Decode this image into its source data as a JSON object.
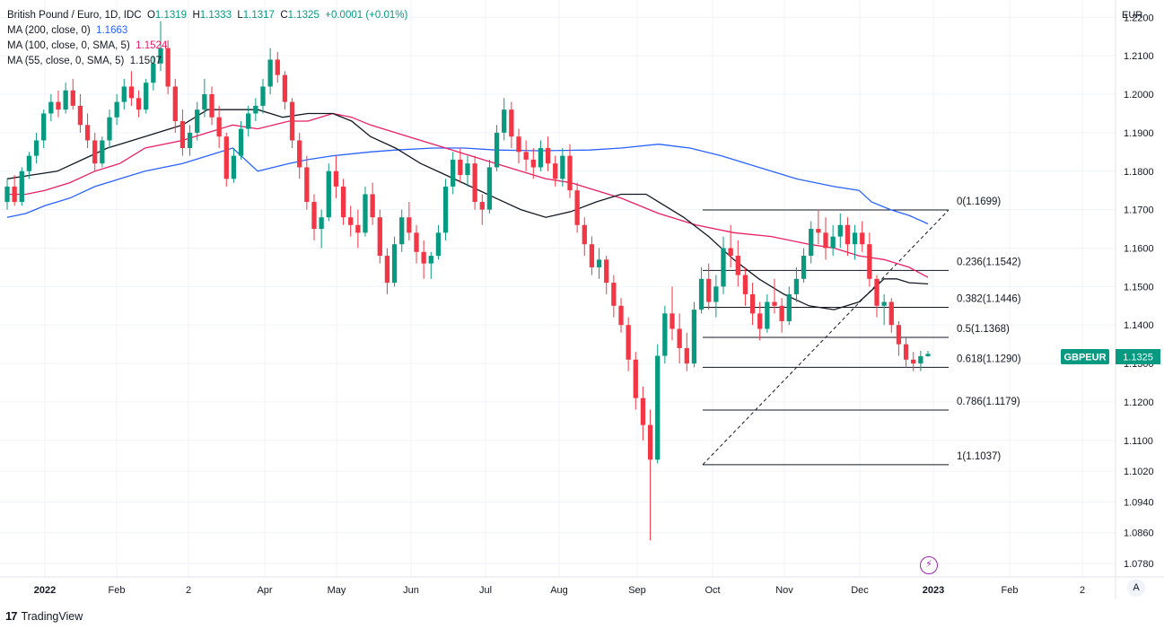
{
  "legend": {
    "symbol": "British Pound / Euro, 1D, IDC",
    "open_label": "O",
    "open": "1.1319",
    "high_label": "H",
    "high": "1.1333",
    "low_label": "L",
    "low": "1.1317",
    "close_label": "C",
    "close": "1.1325",
    "change": "+0.0001 (+0.01%)",
    "ma200_label": "MA (200, close, 0)",
    "ma200_value": "1.1663",
    "ma100_label": "MA (100, close, 0, SMA, 5)",
    "ma100_value": "1.1524",
    "ma55_label": "MA (55, close, 0, SMA, 5)",
    "ma55_value": "1.1507"
  },
  "currency": "EUR",
  "auto_button": "A",
  "brand": {
    "logo": "17",
    "name": "TradingView"
  },
  "colors": {
    "up": "#089981",
    "down": "#f23645",
    "ma200": "#2962ff",
    "ma100": "#e91e63",
    "ma55": "#131722",
    "badge": "#089981"
  },
  "chart_data": {
    "type": "candlestick",
    "title": "British Pound / Euro, 1D, IDC",
    "y_axis": {
      "ticks": [
        1.078,
        1.086,
        1.094,
        1.102,
        1.11,
        1.12,
        1.13,
        1.14,
        1.15,
        1.16,
        1.17,
        1.18,
        1.19,
        1.2,
        1.21,
        1.22
      ],
      "tick_labels": [
        "1.0780",
        "1.0860",
        "1.0940",
        "1.1020",
        "1.1100",
        "1.1200",
        "1.1300",
        "1.1400",
        "1.1500",
        "1.1600",
        "1.1700",
        "1.1800",
        "1.1900",
        "1.2000",
        "1.2100",
        "1.2200"
      ],
      "range": [
        1.0745,
        1.2245
      ]
    },
    "x_axis": {
      "labels": [
        "2022",
        "Feb",
        "2",
        "Apr",
        "May",
        "Jun",
        "Jul",
        "Aug",
        "Sep",
        "Oct",
        "Nov",
        "Dec",
        "2023",
        "Feb",
        "2"
      ]
    },
    "last_price": {
      "symbol": "GBPEUR",
      "value": "1.1325"
    },
    "fibonacci": {
      "levels": [
        {
          "ratio": "0",
          "price": 1.1699,
          "label": "0(1.1699)"
        },
        {
          "ratio": "0.236",
          "price": 1.1542,
          "label": "0.236(1.1542)"
        },
        {
          "ratio": "0.382",
          "price": 1.1446,
          "label": "0.382(1.1446)"
        },
        {
          "ratio": "0.5",
          "price": 1.1368,
          "label": "0.5(1.1368)"
        },
        {
          "ratio": "0.618",
          "price": 1.129,
          "label": "0.618(1.1290)"
        },
        {
          "ratio": "0.786",
          "price": 1.1179,
          "label": "0.786(1.1179)"
        },
        {
          "ratio": "1",
          "price": 1.1037,
          "label": "1(1.1037)"
        }
      ]
    },
    "series": [
      {
        "name": "MA (200, close, 0)",
        "color": "#2962ff",
        "points": [
          [
            0,
            1.168
          ],
          [
            3,
            1.169
          ],
          [
            6,
            1.171
          ],
          [
            10,
            1.173
          ],
          [
            14,
            1.176
          ],
          [
            18,
            1.178
          ],
          [
            22,
            1.18
          ],
          [
            28,
            1.182
          ],
          [
            32,
            1.184
          ],
          [
            36,
            1.186
          ],
          [
            40,
            1.18
          ],
          [
            45,
            1.182
          ],
          [
            48,
            1.183
          ],
          [
            52,
            1.184
          ],
          [
            58,
            1.185
          ],
          [
            62,
            1.1855
          ],
          [
            68,
            1.186
          ],
          [
            73,
            1.186
          ],
          [
            78,
            1.1855
          ],
          [
            85,
            1.1853
          ],
          [
            93,
            1.1855
          ],
          [
            98,
            1.186
          ],
          [
            104,
            1.187
          ],
          [
            109,
            1.186
          ],
          [
            114,
            1.184
          ],
          [
            120,
            1.181
          ],
          [
            126,
            1.178
          ],
          [
            132,
            1.176
          ],
          [
            136,
            1.175
          ],
          [
            138,
            1.172
          ],
          [
            141,
            1.17
          ],
          [
            144,
            1.1685
          ],
          [
            147,
            1.1663
          ]
        ]
      },
      {
        "name": "MA (100, close, 0, SMA, 5)",
        "color": "#e91e63",
        "points": [
          [
            0,
            1.174
          ],
          [
            3,
            1.174
          ],
          [
            6,
            1.175
          ],
          [
            10,
            1.177
          ],
          [
            14,
            1.18
          ],
          [
            18,
            1.182
          ],
          [
            22,
            1.186
          ],
          [
            28,
            1.188
          ],
          [
            32,
            1.19
          ],
          [
            36,
            1.192
          ],
          [
            40,
            1.191
          ],
          [
            45,
            1.193
          ],
          [
            48,
            1.193
          ],
          [
            52,
            1.195
          ],
          [
            55,
            1.194
          ],
          [
            58,
            1.192
          ],
          [
            62,
            1.19
          ],
          [
            66,
            1.188
          ],
          [
            70,
            1.186
          ],
          [
            74,
            1.184
          ],
          [
            78,
            1.182
          ],
          [
            82,
            1.18
          ],
          [
            86,
            1.178
          ],
          [
            90,
            1.177
          ],
          [
            94,
            1.175
          ],
          [
            98,
            1.173
          ],
          [
            104,
            1.169
          ],
          [
            110,
            1.166
          ],
          [
            116,
            1.164
          ],
          [
            122,
            1.163
          ],
          [
            128,
            1.161
          ],
          [
            132,
            1.16
          ],
          [
            136,
            1.158
          ],
          [
            140,
            1.157
          ],
          [
            144,
            1.155
          ],
          [
            147,
            1.1524
          ]
        ]
      },
      {
        "name": "MA (55, close, 0, SMA, 5)",
        "color": "#131722",
        "points": [
          [
            0,
            1.178
          ],
          [
            4,
            1.179
          ],
          [
            8,
            1.18
          ],
          [
            12,
            1.183
          ],
          [
            16,
            1.186
          ],
          [
            20,
            1.188
          ],
          [
            24,
            1.19
          ],
          [
            28,
            1.192
          ],
          [
            32,
            1.196
          ],
          [
            36,
            1.196
          ],
          [
            40,
            1.196
          ],
          [
            44,
            1.194
          ],
          [
            48,
            1.195
          ],
          [
            52,
            1.195
          ],
          [
            55,
            1.193
          ],
          [
            58,
            1.189
          ],
          [
            62,
            1.186
          ],
          [
            66,
            1.182
          ],
          [
            70,
            1.179
          ],
          [
            74,
            1.176
          ],
          [
            78,
            1.173
          ],
          [
            82,
            1.17
          ],
          [
            86,
            1.168
          ],
          [
            90,
            1.1695
          ],
          [
            94,
            1.172
          ],
          [
            98,
            1.174
          ],
          [
            102,
            1.174
          ],
          [
            104,
            1.172
          ],
          [
            108,
            1.168
          ],
          [
            112,
            1.163
          ],
          [
            116,
            1.157
          ],
          [
            120,
            1.152
          ],
          [
            124,
            1.148
          ],
          [
            128,
            1.145
          ],
          [
            132,
            1.144
          ],
          [
            136,
            1.146
          ],
          [
            138,
            1.149
          ],
          [
            140,
            1.152
          ],
          [
            142,
            1.152
          ],
          [
            144,
            1.151
          ],
          [
            147,
            1.1507
          ]
        ]
      }
    ],
    "candles": [
      [
        1.172,
        1.178,
        1.17,
        1.176
      ],
      [
        1.176,
        1.179,
        1.171,
        1.172
      ],
      [
        1.172,
        1.181,
        1.171,
        1.18
      ],
      [
        1.18,
        1.185,
        1.178,
        1.184
      ],
      [
        1.184,
        1.19,
        1.182,
        1.188
      ],
      [
        1.188,
        1.196,
        1.186,
        1.195
      ],
      [
        1.195,
        1.2,
        1.193,
        1.198
      ],
      [
        1.198,
        1.201,
        1.194,
        1.196
      ],
      [
        1.196,
        1.203,
        1.195,
        1.201
      ],
      [
        1.201,
        1.204,
        1.196,
        1.197
      ],
      [
        1.197,
        1.2,
        1.19,
        1.192
      ],
      [
        1.192,
        1.195,
        1.186,
        1.188
      ],
      [
        1.188,
        1.19,
        1.18,
        1.182
      ],
      [
        1.182,
        1.189,
        1.181,
        1.188
      ],
      [
        1.188,
        1.196,
        1.186,
        1.194
      ],
      [
        1.194,
        1.2,
        1.192,
        1.198
      ],
      [
        1.198,
        1.204,
        1.196,
        1.202
      ],
      [
        1.202,
        1.206,
        1.197,
        1.199
      ],
      [
        1.199,
        1.201,
        1.194,
        1.196
      ],
      [
        1.196,
        1.204,
        1.195,
        1.203
      ],
      [
        1.203,
        1.21,
        1.201,
        1.208
      ],
      [
        1.208,
        1.219,
        1.206,
        1.212
      ],
      [
        1.212,
        1.214,
        1.2,
        1.202
      ],
      [
        1.202,
        1.204,
        1.19,
        1.193
      ],
      [
        1.193,
        1.196,
        1.184,
        1.186
      ],
      [
        1.186,
        1.192,
        1.184,
        1.19
      ],
      [
        1.19,
        1.198,
        1.188,
        1.196
      ],
      [
        1.196,
        1.204,
        1.194,
        1.2
      ],
      [
        1.2,
        1.202,
        1.192,
        1.194
      ],
      [
        1.194,
        1.197,
        1.186,
        1.189
      ],
      [
        1.189,
        1.19,
        1.176,
        1.178
      ],
      [
        1.178,
        1.186,
        1.177,
        1.184
      ],
      [
        1.184,
        1.193,
        1.183,
        1.191
      ],
      [
        1.191,
        1.197,
        1.189,
        1.195
      ],
      [
        1.195,
        1.199,
        1.193,
        1.197
      ],
      [
        1.197,
        1.204,
        1.195,
        1.202
      ],
      [
        1.202,
        1.212,
        1.2,
        1.209
      ],
      [
        1.209,
        1.211,
        1.203,
        1.205
      ],
      [
        1.205,
        1.206,
        1.196,
        1.198
      ],
      [
        1.198,
        1.199,
        1.186,
        1.188
      ],
      [
        1.188,
        1.19,
        1.178,
        1.181
      ],
      [
        1.181,
        1.184,
        1.17,
        1.172
      ],
      [
        1.172,
        1.174,
        1.162,
        1.165
      ],
      [
        1.165,
        1.17,
        1.16,
        1.168
      ],
      [
        1.168,
        1.182,
        1.167,
        1.18
      ],
      [
        1.18,
        1.184,
        1.173,
        1.176
      ],
      [
        1.176,
        1.178,
        1.166,
        1.168
      ],
      [
        1.168,
        1.171,
        1.163,
        1.166
      ],
      [
        1.166,
        1.17,
        1.16,
        1.164
      ],
      [
        1.164,
        1.176,
        1.163,
        1.174
      ],
      [
        1.174,
        1.177,
        1.166,
        1.168
      ],
      [
        1.168,
        1.17,
        1.156,
        1.158
      ],
      [
        1.158,
        1.16,
        1.148,
        1.151
      ],
      [
        1.151,
        1.163,
        1.15,
        1.161
      ],
      [
        1.161,
        1.17,
        1.159,
        1.168
      ],
      [
        1.168,
        1.172,
        1.162,
        1.164
      ],
      [
        1.164,
        1.166,
        1.156,
        1.159
      ],
      [
        1.159,
        1.162,
        1.152,
        1.156
      ],
      [
        1.156,
        1.159,
        1.152,
        1.158
      ],
      [
        1.158,
        1.166,
        1.157,
        1.164
      ],
      [
        1.164,
        1.178,
        1.162,
        1.176
      ],
      [
        1.176,
        1.185,
        1.174,
        1.183
      ],
      [
        1.183,
        1.186,
        1.177,
        1.179
      ],
      [
        1.179,
        1.184,
        1.176,
        1.182
      ],
      [
        1.182,
        1.184,
        1.17,
        1.172
      ],
      [
        1.172,
        1.174,
        1.166,
        1.17
      ],
      [
        1.17,
        1.183,
        1.169,
        1.181
      ],
      [
        1.181,
        1.192,
        1.18,
        1.19
      ],
      [
        1.19,
        1.199,
        1.188,
        1.196
      ],
      [
        1.196,
        1.198,
        1.186,
        1.189
      ],
      [
        1.189,
        1.191,
        1.182,
        1.185
      ],
      [
        1.185,
        1.188,
        1.18,
        1.183
      ],
      [
        1.183,
        1.186,
        1.178,
        1.181
      ],
      [
        1.181,
        1.188,
        1.18,
        1.186
      ],
      [
        1.186,
        1.189,
        1.18,
        1.182
      ],
      [
        1.182,
        1.184,
        1.176,
        1.178
      ],
      [
        1.178,
        1.186,
        1.176,
        1.184
      ],
      [
        1.184,
        1.187,
        1.173,
        1.175
      ],
      [
        1.175,
        1.177,
        1.164,
        1.166
      ],
      [
        1.166,
        1.168,
        1.158,
        1.161
      ],
      [
        1.161,
        1.163,
        1.153,
        1.155
      ],
      [
        1.155,
        1.16,
        1.152,
        1.157
      ],
      [
        1.157,
        1.158,
        1.148,
        1.151
      ],
      [
        1.151,
        1.153,
        1.142,
        1.145
      ],
      [
        1.145,
        1.147,
        1.138,
        1.14
      ],
      [
        1.14,
        1.142,
        1.128,
        1.131
      ],
      [
        1.131,
        1.133,
        1.118,
        1.121
      ],
      [
        1.121,
        1.124,
        1.11,
        1.114
      ],
      [
        1.114,
        1.118,
        1.084,
        1.105
      ],
      [
        1.105,
        1.135,
        1.104,
        1.132
      ],
      [
        1.132,
        1.145,
        1.13,
        1.143
      ],
      [
        1.143,
        1.15,
        1.136,
        1.139
      ],
      [
        1.139,
        1.143,
        1.13,
        1.134
      ],
      [
        1.134,
        1.138,
        1.128,
        1.13
      ],
      [
        1.13,
        1.146,
        1.129,
        1.144
      ],
      [
        1.144,
        1.155,
        1.143,
        1.152
      ],
      [
        1.152,
        1.156,
        1.144,
        1.146
      ],
      [
        1.146,
        1.153,
        1.142,
        1.15
      ],
      [
        1.15,
        1.163,
        1.148,
        1.16
      ],
      [
        1.16,
        1.166,
        1.155,
        1.158
      ],
      [
        1.158,
        1.162,
        1.15,
        1.153
      ],
      [
        1.153,
        1.155,
        1.145,
        1.148
      ],
      [
        1.148,
        1.151,
        1.14,
        1.143
      ],
      [
        1.143,
        1.146,
        1.136,
        1.139
      ],
      [
        1.139,
        1.148,
        1.138,
        1.146
      ],
      [
        1.146,
        1.152,
        1.143,
        1.145
      ],
      [
        1.145,
        1.147,
        1.138,
        1.141
      ],
      [
        1.141,
        1.15,
        1.14,
        1.148
      ],
      [
        1.148,
        1.155,
        1.146,
        1.152
      ],
      [
        1.152,
        1.16,
        1.151,
        1.158
      ],
      [
        1.158,
        1.167,
        1.156,
        1.165
      ],
      [
        1.165,
        1.17,
        1.161,
        1.164
      ],
      [
        1.164,
        1.168,
        1.157,
        1.16
      ],
      [
        1.16,
        1.166,
        1.158,
        1.163
      ],
      [
        1.163,
        1.169,
        1.16,
        1.166
      ],
      [
        1.166,
        1.168,
        1.158,
        1.161
      ],
      [
        1.161,
        1.166,
        1.157,
        1.164
      ],
      [
        1.164,
        1.167,
        1.159,
        1.161
      ],
      [
        1.161,
        1.164,
        1.15,
        1.152
      ],
      [
        1.152,
        1.153,
        1.142,
        1.145
      ],
      [
        1.145,
        1.148,
        1.14,
        1.146
      ],
      [
        1.146,
        1.147,
        1.138,
        1.14
      ],
      [
        1.14,
        1.141,
        1.132,
        1.135
      ],
      [
        1.135,
        1.137,
        1.129,
        1.131
      ],
      [
        1.131,
        1.133,
        1.128,
        1.13
      ],
      [
        1.13,
        1.1333,
        1.128,
        1.1319
      ],
      [
        1.1319,
        1.1333,
        1.1317,
        1.1325
      ]
    ]
  }
}
